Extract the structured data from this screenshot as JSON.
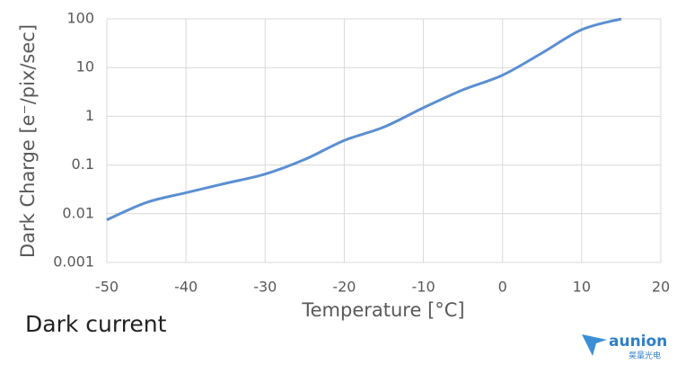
{
  "chart_data": {
    "type": "line",
    "x_label": "Temperature [°C]",
    "y_label": "Dark Charge [e⁻/pix/sec]",
    "x": [
      -50,
      -45,
      -40,
      -35,
      -30,
      -25,
      -20,
      -15,
      -10,
      -5,
      0,
      5,
      10,
      15
    ],
    "series": [
      {
        "color": "#5b8fd1",
        "values": [
          0.0075,
          0.017,
          0.027,
          0.042,
          0.065,
          0.13,
          0.32,
          0.6,
          1.5,
          3.5,
          7,
          20,
          60,
          100
        ]
      }
    ],
    "xlim": [
      -50,
      20
    ],
    "xticks": [
      -50,
      -40,
      -30,
      -20,
      -10,
      0,
      10,
      20
    ],
    "ylim": [
      0.001,
      100
    ],
    "yticks": [
      0.001,
      0.01,
      0.1,
      1,
      10,
      100
    ],
    "log_y": true,
    "grid": true
  },
  "caption": "Dark current",
  "logo": {
    "name": "aunion",
    "subtitle": "昊量光电"
  }
}
